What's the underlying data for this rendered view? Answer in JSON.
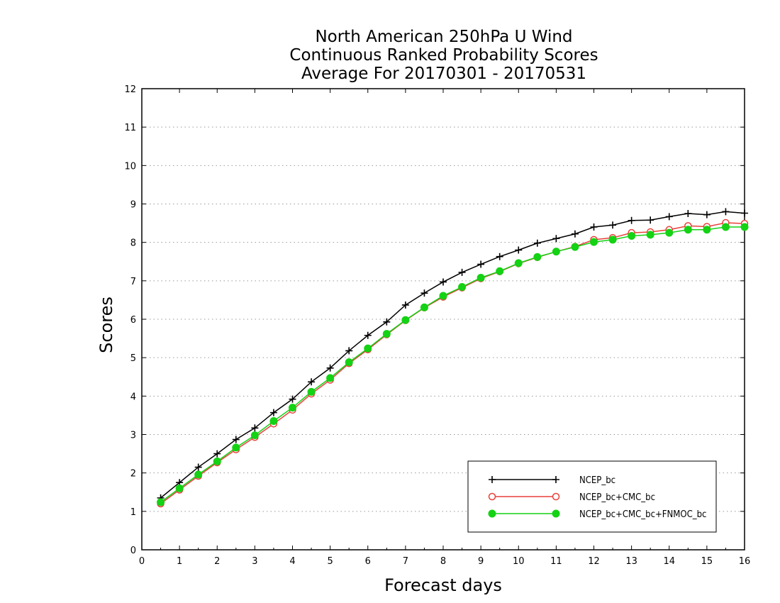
{
  "chart_data": {
    "type": "line",
    "title": [
      "North American 250hPa U Wind",
      "Continuous Ranked Probability Scores",
      "Average For 20170301 - 20170531"
    ],
    "xlabel": "Forecast days",
    "ylabel": "Scores",
    "xlim": [
      0,
      16
    ],
    "ylim": [
      0,
      12
    ],
    "xticks": [
      "0",
      "1",
      "2",
      "3",
      "4",
      "5",
      "6",
      "7",
      "8",
      "9",
      "10",
      "11",
      "12",
      "13",
      "14",
      "15",
      "16"
    ],
    "yticks": [
      "0",
      "1",
      "2",
      "3",
      "4",
      "5",
      "6",
      "7",
      "8",
      "9",
      "10",
      "11",
      "12"
    ],
    "grid": "horizontal-dotted",
    "legend_position": "bottom-right",
    "x": [
      0.5,
      1,
      1.5,
      2,
      2.5,
      3,
      3.5,
      4,
      4.5,
      5,
      5.5,
      6,
      6.5,
      7,
      7.5,
      8,
      8.5,
      9,
      9.5,
      10,
      10.5,
      11,
      11.5,
      12,
      12.5,
      13,
      13.5,
      14,
      14.5,
      15,
      15.5,
      16
    ],
    "series": [
      {
        "name": "NCEP_bc",
        "color": "#000000",
        "marker": "plus",
        "values": [
          1.35,
          1.75,
          2.15,
          2.5,
          2.87,
          3.17,
          3.57,
          3.92,
          4.37,
          4.73,
          5.18,
          5.58,
          5.93,
          6.37,
          6.68,
          6.97,
          7.22,
          7.43,
          7.63,
          7.8,
          7.98,
          8.1,
          8.22,
          8.4,
          8.45,
          8.57,
          8.58,
          8.67,
          8.75,
          8.72,
          8.8,
          8.76
        ]
      },
      {
        "name": "NCEP_bc+CMC_bc",
        "color": "#e8413a",
        "marker": "open-circle",
        "values": [
          1.2,
          1.56,
          1.92,
          2.27,
          2.61,
          2.93,
          3.28,
          3.64,
          4.06,
          4.42,
          4.85,
          5.21,
          5.6,
          5.97,
          6.3,
          6.58,
          6.82,
          7.06,
          7.24,
          7.45,
          7.61,
          7.76,
          7.89,
          8.07,
          8.12,
          8.25,
          8.27,
          8.33,
          8.43,
          8.41,
          8.51,
          8.49
        ]
      },
      {
        "name": "NCEP_bc+CMC_bc+FNMOC_bc",
        "color": "#14d214",
        "marker": "filled-circle",
        "values": [
          1.24,
          1.6,
          1.96,
          2.3,
          2.66,
          2.98,
          3.35,
          3.7,
          4.11,
          4.47,
          4.88,
          5.24,
          5.62,
          5.98,
          6.31,
          6.61,
          6.84,
          7.08,
          7.25,
          7.46,
          7.62,
          7.76,
          7.88,
          8.01,
          8.07,
          8.17,
          8.2,
          8.25,
          8.33,
          8.33,
          8.4,
          8.4
        ]
      }
    ]
  }
}
